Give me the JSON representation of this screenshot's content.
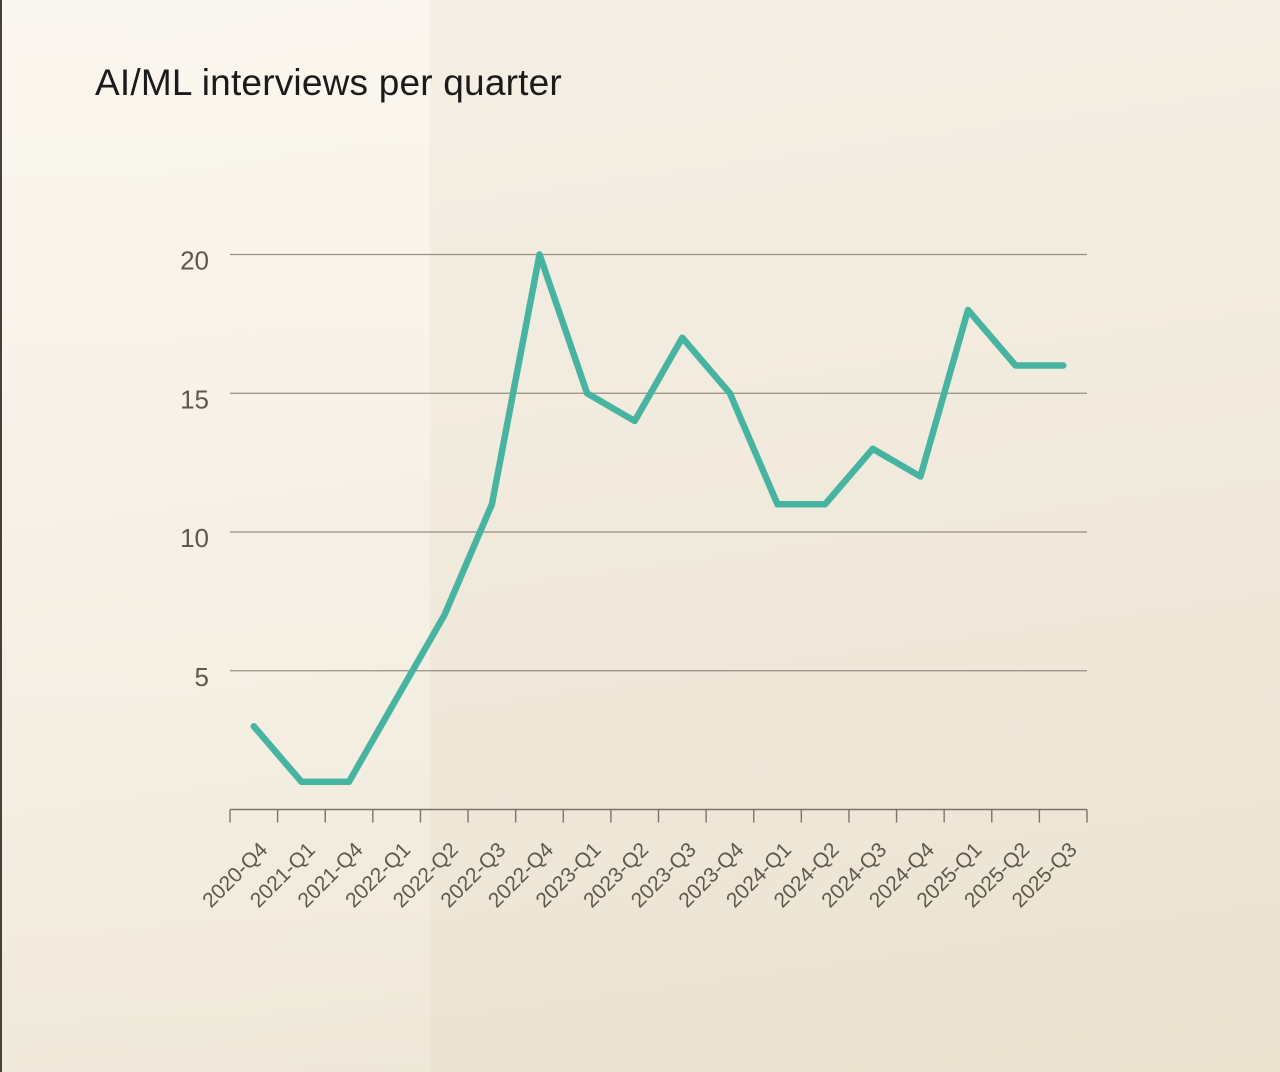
{
  "chart_data": {
    "type": "line",
    "title": "AI/ML interviews per quarter",
    "categories": [
      "2020-Q4",
      "2021-Q1",
      "2021-Q4",
      "2022-Q1",
      "2022-Q2",
      "2022-Q3",
      "2022-Q4",
      "2023-Q1",
      "2023-Q2",
      "2023-Q3",
      "2023-Q4",
      "2024-Q1",
      "2024-Q2",
      "2024-Q3",
      "2024-Q4",
      "2025-Q1",
      "2025-Q2",
      "2025-Q3"
    ],
    "series": [
      {
        "name": "AI/ML interviews",
        "values": [
          3,
          1,
          1,
          4,
          7,
          11,
          20,
          15,
          14,
          17,
          15,
          11,
          11,
          13,
          12,
          18,
          16,
          16
        ]
      }
    ],
    "xlabel": "",
    "ylabel": "",
    "yticks": [
      5,
      10,
      15,
      20
    ],
    "ylim": [
      0,
      20.5
    ],
    "grid": "horizontal",
    "legend": "none",
    "x_tick_rotation_deg": 45,
    "colors": {
      "line": "#47b4a1",
      "grid": "#8d8678",
      "axis": "#7c7567",
      "tick_text": "#5f584c",
      "title_text": "#1b1b1b",
      "background": "#f1eadc",
      "left_edge": "#45413a"
    }
  }
}
